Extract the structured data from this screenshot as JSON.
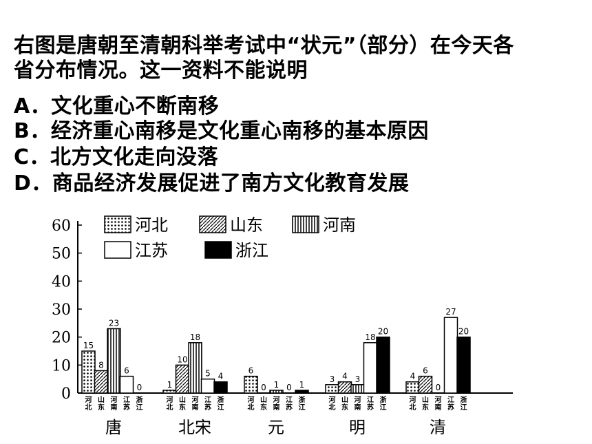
{
  "question": {
    "stem_line1": "右图是唐朝至清朝科举考试中“状元”（部分）在今天各",
    "stem_line2": "省分布情况。这一资料不能说明",
    "options": [
      {
        "label": "A．文化重心不断南移"
      },
      {
        "label": "B．经济重心南移是文化重心南移的基本原因"
      },
      {
        "label": "C．北方文化走向没落"
      },
      {
        "label": "D．商品经济发展促进了南方文化教育发展"
      }
    ]
  },
  "chart_data": {
    "type": "bar",
    "categories": [
      "唐",
      "北宋",
      "元",
      "明",
      "清"
    ],
    "province_tick_labels": [
      [
        "河",
        "北"
      ],
      [
        "山",
        "东"
      ],
      [
        "河",
        "南"
      ],
      [
        "江",
        "苏"
      ],
      [
        "浙",
        "江"
      ]
    ],
    "series": [
      {
        "name": "河北",
        "values": [
          15,
          1,
          6,
          3,
          4
        ],
        "pattern": "dots"
      },
      {
        "name": "山东",
        "values": [
          8,
          10,
          0,
          4,
          6
        ],
        "pattern": "diagonal"
      },
      {
        "name": "河南",
        "values": [
          23,
          18,
          1,
          3,
          0
        ],
        "pattern": "vertical"
      },
      {
        "name": "江苏",
        "values": [
          6,
          5,
          0,
          18,
          27
        ],
        "pattern": "white"
      },
      {
        "name": "浙江",
        "values": [
          0,
          4,
          1,
          20,
          20
        ],
        "pattern": "black"
      }
    ],
    "yticks": [
      0,
      10,
      20,
      30,
      40,
      50,
      60
    ],
    "ylim": [
      0,
      60
    ],
    "legend_position": "top",
    "grid": false
  }
}
